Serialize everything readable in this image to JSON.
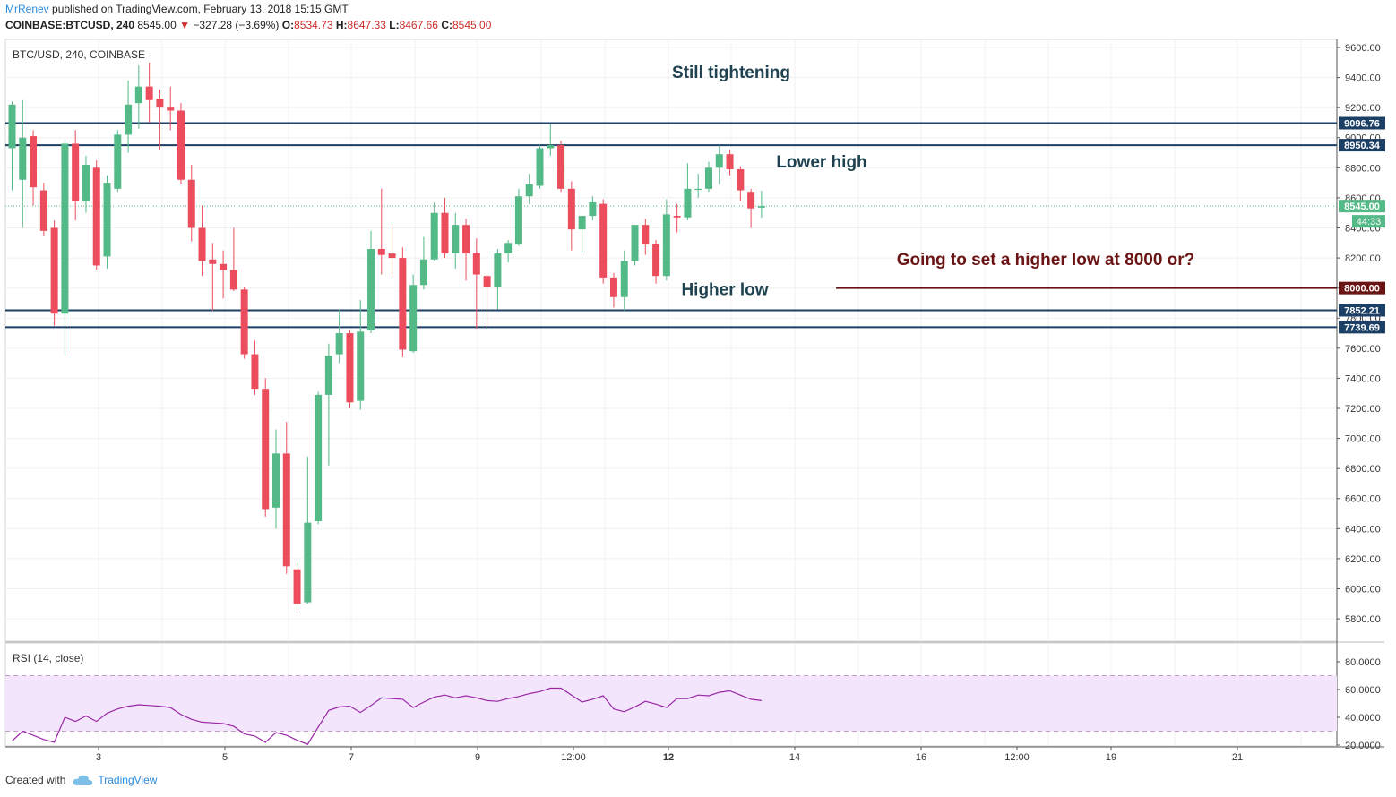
{
  "header": {
    "author": "MrRenev",
    "published": "published on TradingView.com, February 13, 2018 15:15 GMT",
    "symbol": "COINBASE:BTCUSD, 240",
    "last_price": "8545.00",
    "change": "−327.28 (−3.69%)",
    "o_label": "O:",
    "o_value": "8534.73",
    "h_label": "H:",
    "h_value": "8647.33",
    "l_label": "L:",
    "l_value": "8467.66",
    "c_label": "C:",
    "c_value": "8545.00"
  },
  "footer": {
    "created_with": "Created with",
    "brand": "TradingView"
  },
  "colors": {
    "up": "#53b987",
    "down": "#eb4d5c",
    "level": "#1c3f66",
    "annotation_dark": "#1f4250",
    "annotation_red": "#6b1414",
    "rsi": "#9a27a6",
    "rsi_band": "#f3e5fb"
  },
  "chart_data": [
    {
      "type": "candlestick",
      "title": "BTC/USD, 240, COINBASE",
      "ylim": [
        5700,
        9700
      ],
      "y_ticks": [
        "9600.00",
        "9400.00",
        "9200.00",
        "9000.00",
        "8800.00",
        "8600.00",
        "8400.00",
        "8200.00",
        "8000.00",
        "7800.00",
        "7600.00",
        "7400.00",
        "7200.00",
        "7000.00",
        "6800.00",
        "6600.00",
        "6400.00",
        "6200.00",
        "6000.00",
        "5800.00"
      ],
      "x_ticks": [
        "3",
        "5",
        "7",
        "9",
        "12:00",
        "12",
        "14",
        "16",
        "12:00",
        "19",
        "21"
      ],
      "candles": [
        {
          "o": 8930,
          "h": 9240,
          "l": 8650,
          "c": 9220
        },
        {
          "o": 8720,
          "h": 9250,
          "l": 8400,
          "c": 9000
        },
        {
          "o": 9010,
          "h": 9050,
          "l": 8550,
          "c": 8670
        },
        {
          "o": 8650,
          "h": 8700,
          "l": 8350,
          "c": 8380
        },
        {
          "o": 8400,
          "h": 8450,
          "l": 7750,
          "c": 7830
        },
        {
          "o": 7830,
          "h": 8990,
          "l": 7550,
          "c": 8960
        },
        {
          "o": 8960,
          "h": 9050,
          "l": 8450,
          "c": 8580
        },
        {
          "o": 8580,
          "h": 8880,
          "l": 8500,
          "c": 8820
        },
        {
          "o": 8800,
          "h": 8850,
          "l": 8120,
          "c": 8150
        },
        {
          "o": 8210,
          "h": 8750,
          "l": 8130,
          "c": 8700
        },
        {
          "o": 8660,
          "h": 9050,
          "l": 8640,
          "c": 9020
        },
        {
          "o": 9020,
          "h": 9380,
          "l": 8900,
          "c": 9220
        },
        {
          "o": 9230,
          "h": 9480,
          "l": 9060,
          "c": 9340
        },
        {
          "o": 9340,
          "h": 9500,
          "l": 9100,
          "c": 9250
        },
        {
          "o": 9260,
          "h": 9320,
          "l": 8920,
          "c": 9200
        },
        {
          "o": 9200,
          "h": 9340,
          "l": 9050,
          "c": 9180
        },
        {
          "o": 9180,
          "h": 9230,
          "l": 8690,
          "c": 8720
        },
        {
          "o": 8720,
          "h": 8820,
          "l": 8310,
          "c": 8400
        },
        {
          "o": 8400,
          "h": 8550,
          "l": 8080,
          "c": 8180
        },
        {
          "o": 8190,
          "h": 8300,
          "l": 7850,
          "c": 8160
        },
        {
          "o": 8160,
          "h": 8250,
          "l": 7930,
          "c": 8120
        },
        {
          "o": 8120,
          "h": 8400,
          "l": 7980,
          "c": 7990
        },
        {
          "o": 7990,
          "h": 8010,
          "l": 7530,
          "c": 7560
        },
        {
          "o": 7560,
          "h": 7650,
          "l": 7290,
          "c": 7330
        },
        {
          "o": 7330,
          "h": 7400,
          "l": 6480,
          "c": 6530
        },
        {
          "o": 6540,
          "h": 7060,
          "l": 6400,
          "c": 6900
        },
        {
          "o": 6900,
          "h": 7110,
          "l": 6100,
          "c": 6150
        },
        {
          "o": 6130,
          "h": 6170,
          "l": 5860,
          "c": 5900
        },
        {
          "o": 5910,
          "h": 6880,
          "l": 5900,
          "c": 6440
        },
        {
          "o": 6450,
          "h": 7310,
          "l": 6430,
          "c": 7290
        },
        {
          "o": 7290,
          "h": 7630,
          "l": 6820,
          "c": 7550
        },
        {
          "o": 7560,
          "h": 7860,
          "l": 7500,
          "c": 7700
        },
        {
          "o": 7700,
          "h": 7720,
          "l": 7200,
          "c": 7240
        },
        {
          "o": 7250,
          "h": 7920,
          "l": 7190,
          "c": 7710
        },
        {
          "o": 7720,
          "h": 8380,
          "l": 7700,
          "c": 8260
        },
        {
          "o": 8260,
          "h": 8660,
          "l": 8090,
          "c": 8220
        },
        {
          "o": 8230,
          "h": 8430,
          "l": 8070,
          "c": 8200
        },
        {
          "o": 8200,
          "h": 8270,
          "l": 7540,
          "c": 7590
        },
        {
          "o": 7580,
          "h": 8090,
          "l": 7570,
          "c": 8020
        },
        {
          "o": 8020,
          "h": 8340,
          "l": 7990,
          "c": 8190
        },
        {
          "o": 8190,
          "h": 8570,
          "l": 8180,
          "c": 8500
        },
        {
          "o": 8500,
          "h": 8600,
          "l": 8200,
          "c": 8230
        },
        {
          "o": 8230,
          "h": 8500,
          "l": 8130,
          "c": 8420
        },
        {
          "o": 8420,
          "h": 8460,
          "l": 8050,
          "c": 8230
        },
        {
          "o": 8230,
          "h": 8330,
          "l": 7730,
          "c": 8090
        },
        {
          "o": 8080,
          "h": 8090,
          "l": 7730,
          "c": 8010
        },
        {
          "o": 8010,
          "h": 8260,
          "l": 7860,
          "c": 8230
        },
        {
          "o": 8230,
          "h": 8320,
          "l": 8170,
          "c": 8300
        },
        {
          "o": 8290,
          "h": 8660,
          "l": 8280,
          "c": 8610
        },
        {
          "o": 8610,
          "h": 8760,
          "l": 8560,
          "c": 8690
        },
        {
          "o": 8680,
          "h": 8950,
          "l": 8660,
          "c": 8930
        },
        {
          "o": 8930,
          "h": 9090,
          "l": 8880,
          "c": 8950
        },
        {
          "o": 8950,
          "h": 8980,
          "l": 8640,
          "c": 8660
        },
        {
          "o": 8660,
          "h": 8710,
          "l": 8250,
          "c": 8390
        },
        {
          "o": 8390,
          "h": 8480,
          "l": 8240,
          "c": 8480
        },
        {
          "o": 8480,
          "h": 8610,
          "l": 8450,
          "c": 8570
        },
        {
          "o": 8560,
          "h": 8590,
          "l": 8030,
          "c": 8070
        },
        {
          "o": 8070,
          "h": 8100,
          "l": 7870,
          "c": 7940
        },
        {
          "o": 7940,
          "h": 8250,
          "l": 7850,
          "c": 8180
        },
        {
          "o": 8180,
          "h": 8420,
          "l": 8150,
          "c": 8420
        },
        {
          "o": 8420,
          "h": 8460,
          "l": 8220,
          "c": 8290
        },
        {
          "o": 8290,
          "h": 8320,
          "l": 8030,
          "c": 8080
        },
        {
          "o": 8080,
          "h": 8590,
          "l": 8050,
          "c": 8490
        },
        {
          "o": 8480,
          "h": 8560,
          "l": 8370,
          "c": 8470
        },
        {
          "o": 8470,
          "h": 8830,
          "l": 8450,
          "c": 8660
        },
        {
          "o": 8660,
          "h": 8760,
          "l": 8600,
          "c": 8660
        },
        {
          "o": 8660,
          "h": 8840,
          "l": 8640,
          "c": 8800
        },
        {
          "o": 8800,
          "h": 8950,
          "l": 8690,
          "c": 8890
        },
        {
          "o": 8890,
          "h": 8920,
          "l": 8750,
          "c": 8790
        },
        {
          "o": 8790,
          "h": 8810,
          "l": 8580,
          "c": 8650
        },
        {
          "o": 8640,
          "h": 8660,
          "l": 8400,
          "c": 8530
        },
        {
          "o": 8535,
          "h": 8647,
          "l": 8468,
          "c": 8545
        }
      ],
      "price_labels": [
        {
          "value": 9096.76,
          "text": "9096.76",
          "kind": "level"
        },
        {
          "value": 8950.34,
          "text": "8950.34",
          "kind": "level"
        },
        {
          "value": 8545.0,
          "text": "8545.00",
          "kind": "last"
        },
        {
          "value": 8000.0,
          "text": "8000.00",
          "kind": "target"
        },
        {
          "value": 7852.21,
          "text": "7852.21",
          "kind": "level"
        },
        {
          "value": 7739.69,
          "text": "7739.69",
          "kind": "level"
        }
      ],
      "countdown": "44:33",
      "horizontal_lines": [
        9096.76,
        8950.34,
        7852.21,
        7739.69
      ],
      "target_line": 8000.0,
      "annotations": [
        {
          "text": "Still tightening",
          "price": 9440,
          "color": "dark"
        },
        {
          "text": "Lower high",
          "price": 8845,
          "color": "dark"
        },
        {
          "text": "Going to set a higher low at 8000 or?",
          "price": 8195,
          "color": "red"
        },
        {
          "text": "Higher low",
          "price": 7995,
          "color": "dark"
        }
      ]
    },
    {
      "type": "line",
      "title": "RSI (14, close)",
      "ylim": [
        20,
        87
      ],
      "y_ticks": [
        "80.0000",
        "60.0000",
        "40.0000",
        "20.0000"
      ],
      "bands": [
        70,
        30
      ],
      "values": [
        23,
        30,
        27,
        24,
        22,
        40,
        37,
        41,
        37,
        43,
        46,
        48,
        49,
        48.5,
        48,
        47,
        42,
        38.5,
        36.5,
        36,
        35.5,
        33.5,
        28,
        26.5,
        22,
        29,
        27,
        23.5,
        20.5,
        33,
        45,
        47.5,
        48,
        43.5,
        48.5,
        54,
        53.5,
        53,
        47,
        51,
        54.5,
        56,
        54,
        55.5,
        54,
        52,
        51.5,
        53.5,
        55,
        57,
        58.5,
        61,
        61,
        56,
        51,
        53,
        55.5,
        46,
        44,
        47.5,
        51.5,
        49.5,
        47,
        53.5,
        53.5,
        56,
        55.5,
        58,
        59,
        56,
        53,
        52
      ]
    }
  ]
}
